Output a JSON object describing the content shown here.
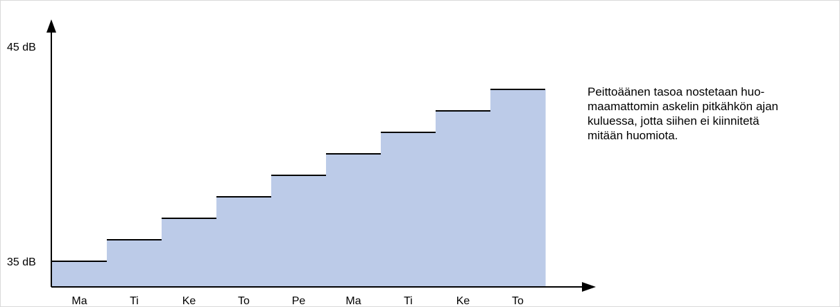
{
  "chart_data": {
    "type": "area",
    "style": "step",
    "categories": [
      "Ma",
      "Ti",
      "Ke",
      "To",
      "Pe",
      "Ma",
      "Ti",
      "Ke",
      "To"
    ],
    "values": [
      35,
      36,
      37,
      38,
      39,
      40,
      41,
      42,
      43
    ],
    "y_tick_labels": [
      {
        "value": 35,
        "label": "35 dB"
      },
      {
        "value": 45,
        "label": "45 dB"
      }
    ],
    "ylim": [
      35,
      45
    ],
    "fill_color": "#bccbe8",
    "line_color": "#000000",
    "grid": false
  },
  "annotation": "Peittoäänen tasoa nostetaan huo-\nmaamattomin askelin pitkähkön ajan\nkuluessa, jotta siihen ei kiinnitetä\nmitään huomiota."
}
